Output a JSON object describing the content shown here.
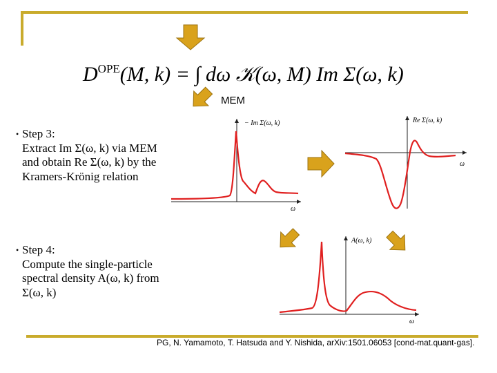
{
  "formula": {
    "lhs": "D",
    "lhs_sup": "OPE",
    "lhs_args": "(M, k) = ∫ dω 𝒦(ω, M) Im Σ(ω, k)"
  },
  "mem_label": "MEM",
  "step3": {
    "bullet": "•",
    "title": "Step 3:",
    "body": "Extract Im Σ(ω, k) via MEM and obtain Re Σ(ω, k) by the Kramers-Krönig relation"
  },
  "step4": {
    "bullet": "•",
    "title": "Step 4:",
    "body": "Compute the single-particle spectral density A(ω, k) from Σ(ω, k)"
  },
  "plots": {
    "im_sigma": {
      "y_label": "− Im Σ(ω, k)",
      "x_label": "ω"
    },
    "re_sigma": {
      "y_label": "Re Σ(ω, k)",
      "x_label": "ω"
    },
    "spectral": {
      "y_label": "A(ω, k)",
      "x_label": "ω"
    }
  },
  "citation": "PG, N. Yamamoto, T. Hatsuda and Y. Nishida, arXiv:1501.06053 [cond-mat.quant-gas].",
  "colors": {
    "frame": "#c9ab2c",
    "arrow": "#d9a21c",
    "arrow_stroke": "#9c7310",
    "curve": "#e02020",
    "axis": "#222222"
  },
  "icons": [
    "arrow-down-icon",
    "arrow-diagonal-icon",
    "arrow-right-icon"
  ]
}
